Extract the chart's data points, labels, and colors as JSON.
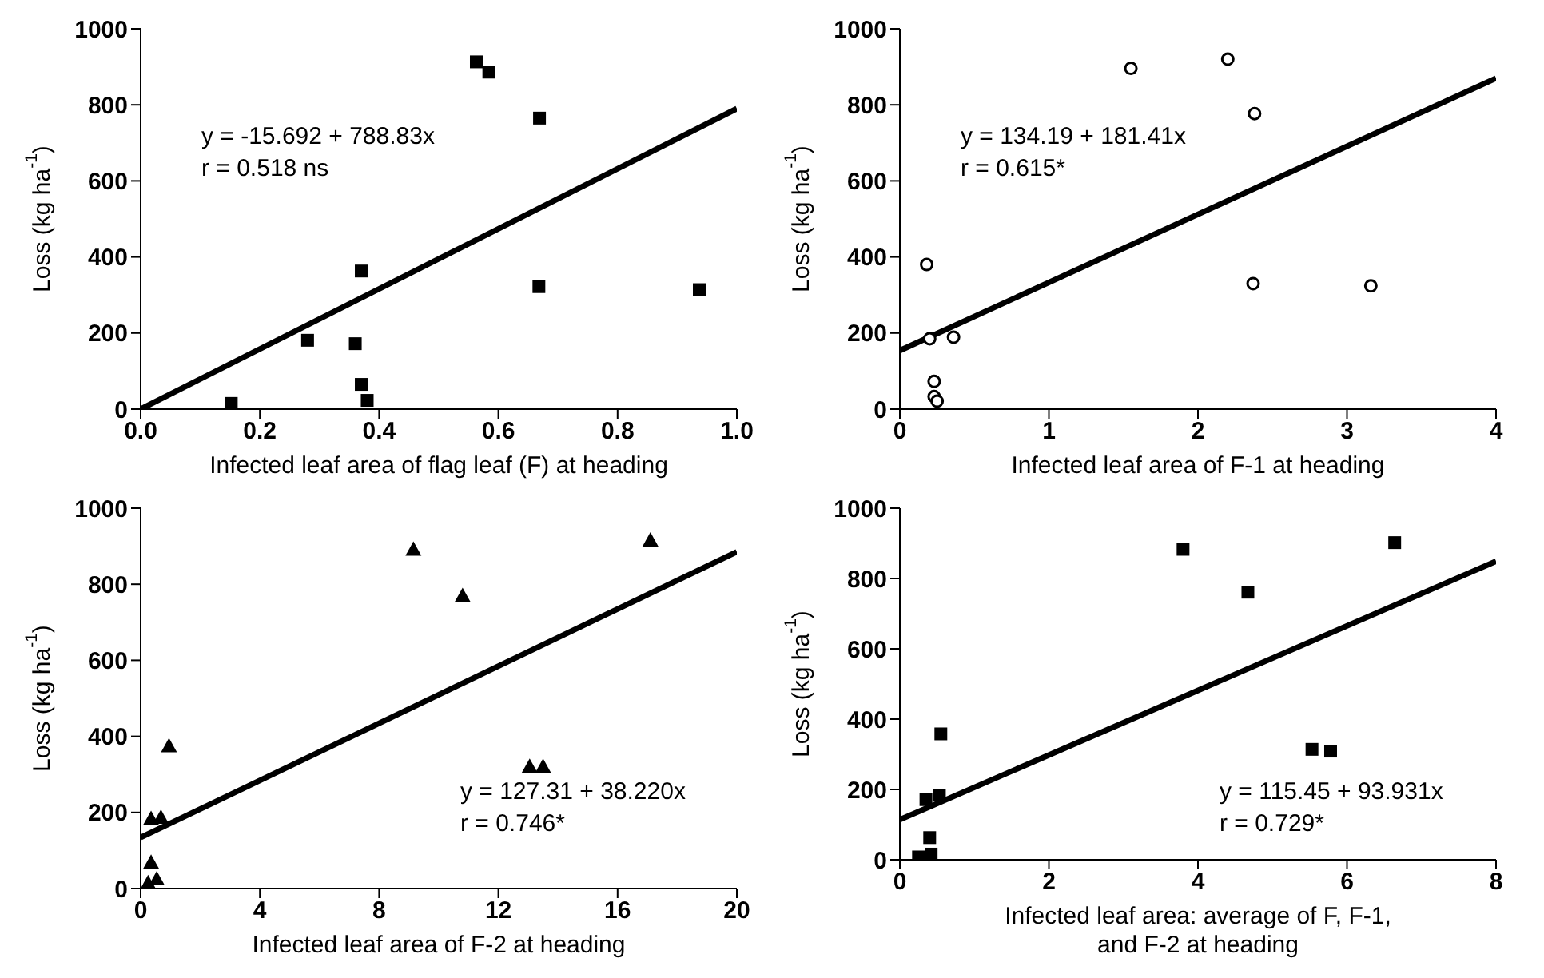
{
  "chart_data": [
    {
      "type": "scatter",
      "xlabel": "Infected leaf area of flag leaf (F) at heading",
      "ylabel": "Loss (kg ha$^{-1}$)",
      "xlim": [
        0,
        1
      ],
      "xticks": [
        {
          "value": 0,
          "label": "0.0"
        },
        0.2,
        0.4,
        0.6,
        0.8,
        {
          "value": 1,
          "label": "1.0"
        }
      ],
      "ylim": [
        0,
        1000
      ],
      "yticks": [
        0,
        200,
        400,
        600,
        800,
        1000
      ],
      "grid": false,
      "legend": false,
      "annotations": [
        "y = -15.692 + 788.83x",
        "r = 0.518 ns"
      ],
      "series": [
        {
          "marker": "square",
          "color": "#000000",
          "x": [
            0.152,
            0.28,
            0.36,
            0.37,
            0.37,
            0.38,
            0.563,
            0.584,
            0.669,
            0.668,
            0.937
          ],
          "values": [
            15,
            181,
            172,
            363,
            65,
            23,
            913,
            886,
            765,
            322,
            314
          ]
        },
        {
          "type": "line",
          "color": "#000000",
          "x": [
            0,
            1
          ],
          "values": [
            0,
            790
          ]
        }
      ]
    },
    {
      "type": "scatter",
      "xlabel": "Infected leaf area of F-1 at heading",
      "ylabel": "Loss (kg ha$^{-1}$)",
      "xlim": [
        0,
        4
      ],
      "xticks": [
        0,
        1,
        2,
        3,
        4
      ],
      "ylim": [
        0,
        1000
      ],
      "yticks": [
        0,
        200,
        400,
        600,
        800,
        1000
      ],
      "grid": false,
      "legend": false,
      "annotations": [
        "y = 134.19 + 181.41x",
        "r = 0.615*"
      ],
      "series": [
        {
          "marker": "circle",
          "color": "#000000",
          "x": [
            0.18,
            0.2,
            0.36,
            0.23,
            0.23,
            0.25,
            1.55,
            2.2,
            2.38,
            2.37,
            3.16
          ],
          "values": [
            380,
            185,
            189,
            73,
            33,
            21,
            896,
            920,
            777,
            330,
            324
          ]
        },
        {
          "type": "line",
          "color": "#000000",
          "x": [
            0,
            4
          ],
          "values": [
            154,
            870
          ]
        }
      ]
    },
    {
      "type": "scatter",
      "xlabel": "Infected leaf area of F-2 at heading",
      "ylabel": "Loss (kg ha$^{-1}$)",
      "xlim": [
        0,
        20
      ],
      "xticks": [
        0,
        4,
        8,
        12,
        16,
        20
      ],
      "ylim": [
        0,
        1000
      ],
      "yticks": [
        0,
        200,
        400,
        600,
        800,
        1000
      ],
      "grid": false,
      "legend": false,
      "annotations": [
        "y = 127.31 + 38.220x",
        "r = 0.746*"
      ],
      "series": [
        {
          "marker": "triangle",
          "color": "#000000",
          "x": [
            0.35,
            0.68,
            0.95,
            0.35,
            0.54,
            0.25,
            9.15,
            10.8,
            13.05,
            13.5,
            17.1
          ],
          "values": [
            184,
            187,
            375,
            69,
            25,
            15,
            892,
            770,
            321,
            321,
            916
          ]
        },
        {
          "type": "line",
          "color": "#000000",
          "x": [
            0,
            20
          ],
          "values": [
            134,
            885
          ]
        }
      ]
    },
    {
      "type": "scatter",
      "xlabel": "Infected leaf area: average of F, F-1, and F-2 at heading",
      "ylabel": "Loss (kg ha$^{-1}$)",
      "xlim": [
        0,
        8
      ],
      "xticks": [
        0,
        2,
        4,
        6,
        8
      ],
      "ylim": [
        0,
        1000
      ],
      "yticks": [
        0,
        200,
        400,
        600,
        800,
        1000
      ],
      "grid": false,
      "legend": false,
      "annotations": [
        "y = 115.45 + 93.931x",
        "r = 0.729*"
      ],
      "series": [
        {
          "marker": "square",
          "color": "#000000",
          "x": [
            3.8,
            4.67,
            5.53,
            5.78,
            6.64,
            0.55,
            0.35,
            0.53,
            0.4,
            0.25,
            0.42
          ],
          "values": [
            883,
            761,
            314,
            309,
            902,
            358,
            171,
            184,
            63,
            8,
            16
          ]
        },
        {
          "type": "line",
          "color": "#000000",
          "x": [
            0,
            8
          ],
          "values": [
            114,
            849
          ]
        }
      ]
    }
  ]
}
